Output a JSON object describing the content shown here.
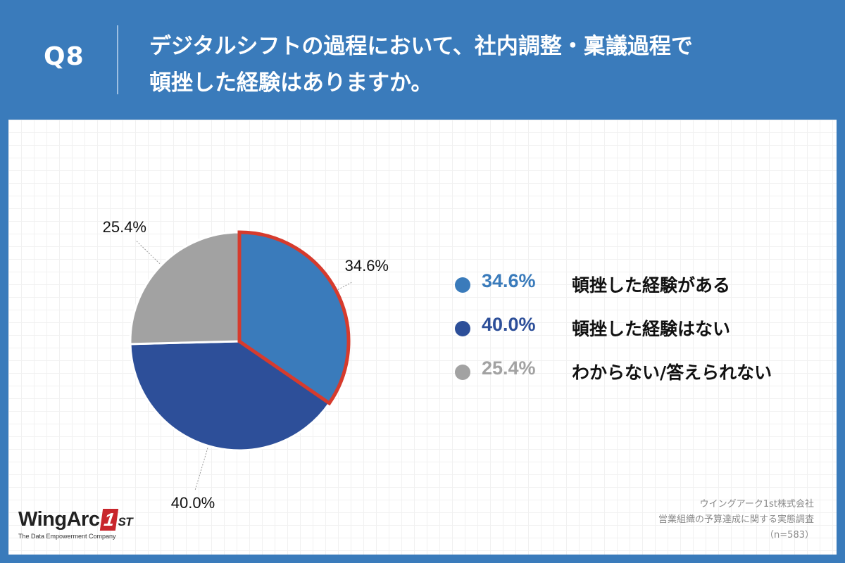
{
  "header": {
    "question_number": "Q8",
    "question_line1": "デジタルシフトの過程において、社内調整・稟議過程で",
    "question_line2": "頓挫した経験はありますか。"
  },
  "chart_data": {
    "type": "pie",
    "slices": [
      {
        "label": "頓挫した経験がある",
        "value": 34.6,
        "display": "34.6%",
        "color": "#3a7bbb",
        "highlight": true,
        "highlight_color": "#d63b2d"
      },
      {
        "label": "頓挫した経験はない",
        "value": 40.0,
        "display": "40.0%",
        "color": "#2d4f99"
      },
      {
        "label": "わからない/答えられない",
        "value": 25.4,
        "display": "25.4%",
        "color": "#a2a2a2"
      }
    ],
    "start": "12 o'clock, clockwise"
  },
  "legend": [
    {
      "pct": "34.6%",
      "label": "頓挫した経験がある",
      "color": "#3a7bbb"
    },
    {
      "pct": "40.0%",
      "label": "頓挫した経験はない",
      "color": "#2d4f99"
    },
    {
      "pct": "25.4%",
      "label": "わからない/答えられない",
      "color": "#a2a2a2"
    }
  ],
  "footer": {
    "logo": {
      "brand": "WingArc",
      "one": "1",
      "st": "ST",
      "tagline": "The Data Empowerment Company"
    },
    "source_company": "ウイングアーク1st株式会社",
    "source_survey": "営業組織の予算達成に関する実態調査",
    "sample": "（n=583）"
  },
  "colors": {
    "header_bg": "#3a7bbb",
    "panel_bg": "#ffffff",
    "accent_red": "#d63b2d"
  }
}
